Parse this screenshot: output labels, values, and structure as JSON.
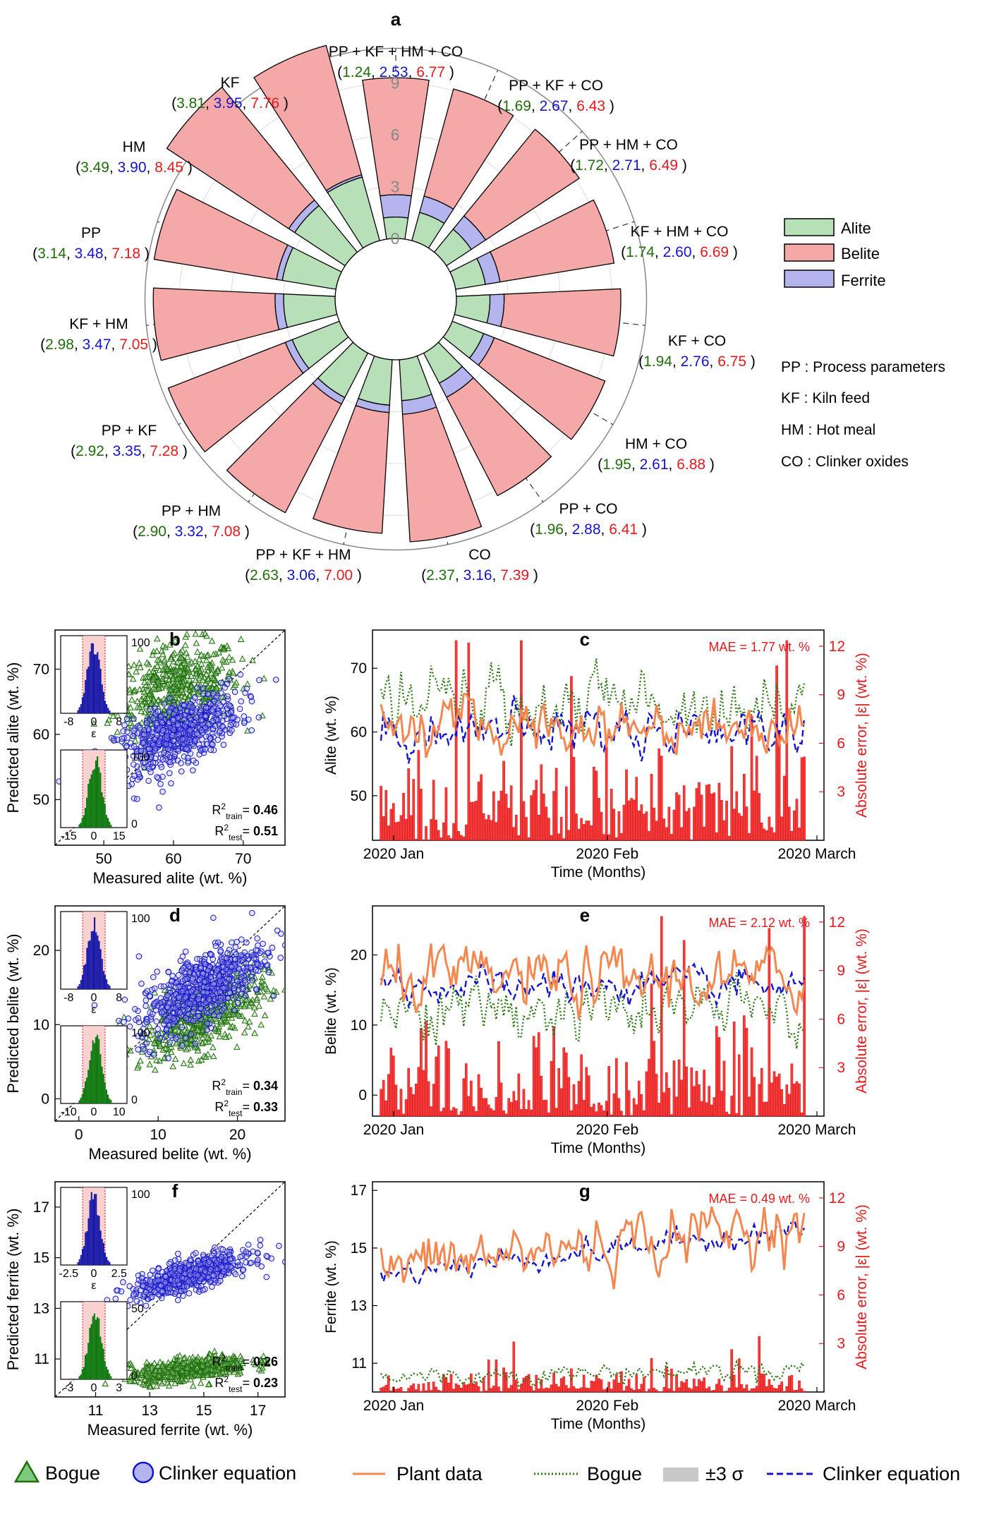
{
  "colors": {
    "alite": "#b8e0b8",
    "belite": "#f5a8a8",
    "ferrite": "#b4b4ee",
    "green": "#1f6e0a",
    "blue": "#1414cc",
    "red": "#e41a1c",
    "orange": "#f4874f",
    "darkgreen": "#2a7a12",
    "navy": "#101090"
  },
  "panel_a": {
    "label": "a",
    "radial_ticks": [
      "0",
      "3",
      "6",
      "9"
    ],
    "legend": [
      {
        "name": "Alite"
      },
      {
        "name": "Belite"
      },
      {
        "name": "Ferrite"
      }
    ],
    "abbreviations": [
      "PP : Process parameters",
      "KF : Kiln feed",
      "HM : Hot meal",
      "CO : Clinker oxides"
    ]
  },
  "panel_b": {
    "label": "b",
    "xlabel": "Measured alite (wt. %)",
    "ylabel": "Predicted alite (wt. %)",
    "xticks": [
      "50",
      "60",
      "70"
    ],
    "yticks": [
      "50",
      "60",
      "70"
    ],
    "r2_train_label": "R",
    "r2_train": "0.46",
    "r2_test": "0.51",
    "inset_top_x": [
      "-8",
      "0",
      "8"
    ],
    "inset_top_y": "100",
    "inset_top_xlabel": "ε",
    "inset_bot_x": [
      "-15",
      "0",
      "15"
    ],
    "inset_bot_y": [
      "100",
      "0"
    ]
  },
  "panel_d": {
    "label": "d",
    "xlabel": "Measured belite (wt. %)",
    "ylabel": "Predicted belite (wt. %)",
    "xticks": [
      "0",
      "10",
      "20"
    ],
    "yticks": [
      "0",
      "10",
      "20"
    ],
    "r2_train": "0.34",
    "r2_test": "0.33",
    "inset_top_x": [
      "-8",
      "0",
      "8"
    ],
    "inset_top_y": "100",
    "inset_top_xlabel": "ε",
    "inset_bot_x": [
      "-10",
      "0",
      "10"
    ],
    "inset_bot_y": [
      "100",
      "0"
    ]
  },
  "panel_f": {
    "label": "f",
    "xlabel": "Measured ferrite (wt. %)",
    "ylabel": "Predicted ferrite (wt. %)",
    "xticks": [
      "11",
      "13",
      "15",
      "17"
    ],
    "yticks": [
      "11",
      "13",
      "15",
      "17"
    ],
    "r2_train": "0.26",
    "r2_test": "0.23",
    "inset_top_x": [
      "-2.5",
      "0",
      "2.5"
    ],
    "inset_top_y": "100",
    "inset_top_xlabel": "ε",
    "inset_bot_x": [
      "-3",
      "0",
      "3"
    ],
    "inset_bot_y": [
      "50",
      "0"
    ]
  },
  "panel_c": {
    "label": "c",
    "mae": "MAE = 1.77 wt. %",
    "ylabel": "Alite (wt. %)",
    "y2label": "Absolute error, |ε| (wt. %)",
    "xlabel": "Time (Months)",
    "xticks": [
      "2020 Jan",
      "2020 Feb",
      "2020 March"
    ],
    "yticks": [
      "50",
      "60",
      "70"
    ],
    "y2ticks": [
      "3",
      "6",
      "9",
      "12"
    ]
  },
  "panel_e": {
    "label": "e",
    "mae": "MAE = 2.12 wt. %",
    "ylabel": "Belite (wt. %)",
    "y2label": "Absolute error, |ε| (wt. %)",
    "xlabel": "Time (Months)",
    "xticks": [
      "2020 Jan",
      "2020 Feb",
      "2020 March"
    ],
    "yticks": [
      "0",
      "10",
      "20"
    ],
    "y2ticks": [
      "3",
      "6",
      "9",
      "12"
    ]
  },
  "panel_g": {
    "label": "g",
    "mae": "MAE = 0.49 wt. %",
    "ylabel": "Ferrite (wt. %)",
    "y2label": "Absolute error, |ε| (wt. %)",
    "xlabel": "Time (Months)",
    "xticks": [
      "2020 Jan",
      "2020 Feb",
      "2020 March"
    ],
    "yticks": [
      "11",
      "13",
      "15",
      "17"
    ],
    "y2ticks": [
      "3",
      "6",
      "9",
      "12"
    ]
  },
  "legend_bottom": {
    "bogue": "Bogue",
    "clinker": "Clinker equation",
    "plant": "Plant data",
    "bogue_line": "Bogue",
    "sigma": "±3 σ",
    "clinker_line": "Clinker equation"
  },
  "chart_data": [
    {
      "type": "bar",
      "subtype": "polar-stacked",
      "title": "a",
      "series_names": [
        "Alite",
        "Belite",
        "Ferrite"
      ],
      "rlim": [
        0,
        9
      ],
      "categories": [
        "PP + KF + HM + CO",
        "PP + KF + CO",
        "PP + HM + CO",
        "KF + HM + CO",
        "KF + CO",
        "HM + CO",
        "PP + CO",
        "CO",
        "PP + KF + HM",
        "PP + HM",
        "PP + KF",
        "KF + HM",
        "PP",
        "HM",
        "KF"
      ],
      "alite": [
        1.24,
        1.69,
        1.72,
        1.74,
        1.94,
        1.95,
        1.96,
        2.37,
        2.63,
        2.9,
        2.92,
        2.98,
        3.14,
        3.49,
        3.81
      ],
      "ferrite": [
        2.53,
        2.67,
        2.71,
        2.6,
        2.76,
        2.61,
        2.88,
        3.16,
        3.06,
        3.32,
        3.35,
        3.47,
        3.48,
        3.9,
        3.95
      ],
      "belite": [
        6.77,
        6.43,
        6.49,
        6.69,
        6.75,
        6.88,
        6.41,
        7.39,
        7.0,
        7.08,
        7.28,
        7.05,
        7.18,
        8.45,
        7.76
      ]
    },
    {
      "type": "scatter",
      "title": "b",
      "xlabel": "Measured alite (wt. %)",
      "ylabel": "Predicted alite (wt. %)",
      "xlim": [
        43,
        76
      ],
      "ylim": [
        43,
        76
      ],
      "series": [
        {
          "name": "Bogue",
          "center": [
            60,
            67
          ]
        },
        {
          "name": "Clinker equation",
          "center": [
            60,
            60
          ]
        }
      ],
      "r2_train": 0.46,
      "r2_test": 0.51
    },
    {
      "type": "scatter",
      "title": "d",
      "xlabel": "Measured belite (wt. %)",
      "ylabel": "Predicted belite (wt. %)",
      "xlim": [
        -3,
        26
      ],
      "ylim": [
        -3,
        26
      ],
      "series": [
        {
          "name": "Bogue",
          "center": [
            15,
            11
          ]
        },
        {
          "name": "Clinker equation",
          "center": [
            15,
            15
          ]
        }
      ],
      "r2_train": 0.34,
      "r2_test": 0.33
    },
    {
      "type": "scatter",
      "title": "f",
      "xlabel": "Measured ferrite (wt. %)",
      "ylabel": "Predicted ferrite (wt. %)",
      "xlim": [
        9.5,
        18
      ],
      "ylim": [
        9.5,
        18
      ],
      "series": [
        {
          "name": "Bogue",
          "center": [
            14.5,
            10.6
          ]
        },
        {
          "name": "Clinker equation",
          "center": [
            14.5,
            14.3
          ]
        }
      ],
      "r2_train": 0.26,
      "r2_test": 0.23
    },
    {
      "type": "line",
      "title": "c",
      "ylabel": "Alite (wt. %)",
      "ylim": [
        43,
        76
      ],
      "y2lim": [
        0,
        13
      ],
      "series": [
        {
          "name": "Plant data",
          "mean": 61
        },
        {
          "name": "Bogue",
          "mean": 64.5
        },
        {
          "name": "Clinker equation",
          "mean": 60.5
        }
      ],
      "mae": 1.77
    },
    {
      "type": "line",
      "title": "e",
      "ylabel": "Belite (wt. %)",
      "ylim": [
        -3,
        27
      ],
      "y2lim": [
        0,
        13
      ],
      "series": [
        {
          "name": "Plant data",
          "mean": 16.5
        },
        {
          "name": "Bogue",
          "mean": 12
        },
        {
          "name": "Clinker equation",
          "mean": 15.5
        }
      ],
      "mae": 2.12
    },
    {
      "type": "line",
      "title": "g",
      "ylabel": "Ferrite (wt. %)",
      "ylim": [
        10,
        17.3
      ],
      "y2lim": [
        0,
        13
      ],
      "series": [
        {
          "name": "Plant data",
          "mean": 14.3
        },
        {
          "name": "Bogue",
          "mean": 10.5
        },
        {
          "name": "Clinker equation",
          "mean": 14.1
        }
      ],
      "mae": 0.49
    }
  ]
}
